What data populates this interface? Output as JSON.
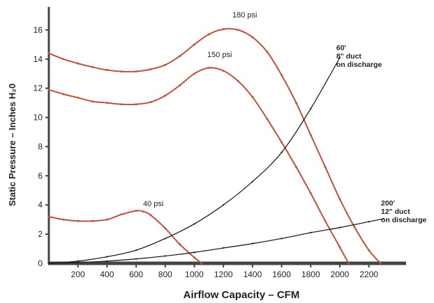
{
  "chart_data": {
    "type": "line",
    "xlabel": "Airflow Capacity – CFM",
    "ylabel": "Static Pressure – Inches H₂0",
    "xlim": [
      0,
      2350
    ],
    "ylim": [
      0,
      17
    ],
    "x_ticks": [
      200,
      400,
      600,
      800,
      1000,
      1200,
      1400,
      1600,
      1800,
      2000,
      2200
    ],
    "y_ticks": [
      0,
      2,
      4,
      6,
      8,
      10,
      12,
      14,
      16
    ],
    "grid": false,
    "series": [
      {
        "name": "180 psi",
        "color": "#c0503a",
        "x": [
          0,
          100,
          200,
          300,
          400,
          500,
          600,
          700,
          800,
          900,
          1000,
          1100,
          1200,
          1300,
          1400,
          1500,
          1600,
          1700,
          1800,
          1900,
          2000,
          2100,
          2200,
          2280
        ],
        "y": [
          14.4,
          14.0,
          13.7,
          13.45,
          13.25,
          13.15,
          13.15,
          13.3,
          13.6,
          14.2,
          15.0,
          15.7,
          16.05,
          16.0,
          15.5,
          14.5,
          12.9,
          11.0,
          8.8,
          6.6,
          4.4,
          2.5,
          0.9,
          0
        ]
      },
      {
        "name": "150 psi",
        "color": "#c0503a",
        "x": [
          0,
          100,
          200,
          300,
          400,
          500,
          600,
          700,
          800,
          900,
          1000,
          1100,
          1200,
          1300,
          1400,
          1500,
          1600,
          1700,
          1800,
          1900,
          2000,
          2060
        ],
        "y": [
          11.9,
          11.6,
          11.35,
          11.1,
          11.0,
          10.9,
          10.9,
          11.05,
          11.5,
          12.2,
          13.0,
          13.4,
          13.2,
          12.5,
          11.4,
          9.9,
          8.3,
          6.6,
          4.8,
          2.9,
          1.1,
          0
        ]
      },
      {
        "name": "40 psi",
        "color": "#c0503a",
        "x": [
          0,
          100,
          200,
          300,
          400,
          500,
          600,
          650,
          700,
          800,
          900,
          1000,
          1050
        ],
        "y": [
          3.2,
          3.0,
          2.9,
          2.9,
          3.0,
          3.35,
          3.6,
          3.55,
          3.3,
          2.4,
          1.3,
          0.4,
          0
        ]
      },
      {
        "name": "60' 8\" duct on discharge",
        "color": "#222222",
        "x": [
          0,
          200,
          400,
          600,
          800,
          1000,
          1200,
          1400,
          1600,
          1800,
          2000
        ],
        "y": [
          0,
          0.15,
          0.45,
          0.9,
          1.7,
          2.7,
          4.0,
          5.6,
          7.6,
          10.6,
          14.1
        ]
      },
      {
        "name": "200' 12\" duct on discharge",
        "color": "#222222",
        "x": [
          0,
          200,
          400,
          600,
          800,
          1000,
          1200,
          1400,
          1600,
          1800,
          2000,
          2200,
          2300
        ],
        "y": [
          0,
          0.05,
          0.15,
          0.3,
          0.5,
          0.75,
          1.05,
          1.35,
          1.7,
          2.1,
          2.45,
          2.85,
          3.05
        ]
      }
    ],
    "labels": {
      "psi180": "180 psi",
      "psi150": "150 psi",
      "psi40": "40 psi",
      "duct8_1": "60'",
      "duct8_2": "8\" duct",
      "duct8_3": "on discharge",
      "duct12_1": "200'",
      "duct12_2": "12\" duct",
      "duct12_3": "on discharge"
    }
  }
}
